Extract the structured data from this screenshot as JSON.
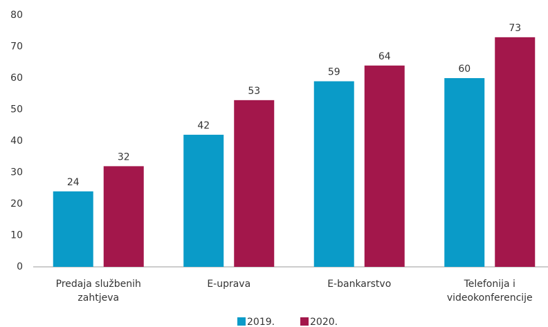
{
  "chart_data": {
    "type": "bar",
    "categories": [
      "Predaja službenih zahtjeva",
      "E-uprava",
      "E-bankarstvo",
      "Telefonija i videokonferencije"
    ],
    "series": [
      {
        "name": "2019.",
        "color": "#0a9bc8",
        "values": [
          24,
          42,
          59,
          60
        ]
      },
      {
        "name": "2020.",
        "color": "#a3174b",
        "values": [
          32,
          53,
          64,
          73
        ]
      }
    ],
    "ylim": [
      0,
      80
    ],
    "yticks": [
      0,
      10,
      20,
      30,
      40,
      50,
      60,
      70,
      80
    ],
    "grid": false,
    "legend": "bottom"
  }
}
